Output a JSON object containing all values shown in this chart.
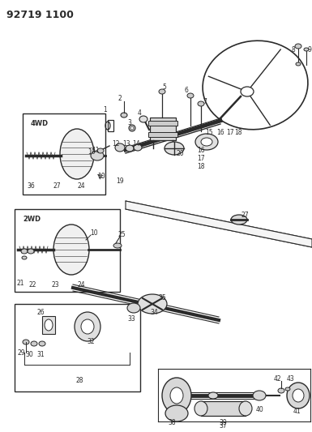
{
  "title": "92719 1100",
  "bg_color": "#ffffff",
  "line_color": "#2a2a2a",
  "fig_width": 3.85,
  "fig_height": 5.33,
  "dpi": 100,
  "label_fontsize": 5.5,
  "title_fontsize": 9
}
